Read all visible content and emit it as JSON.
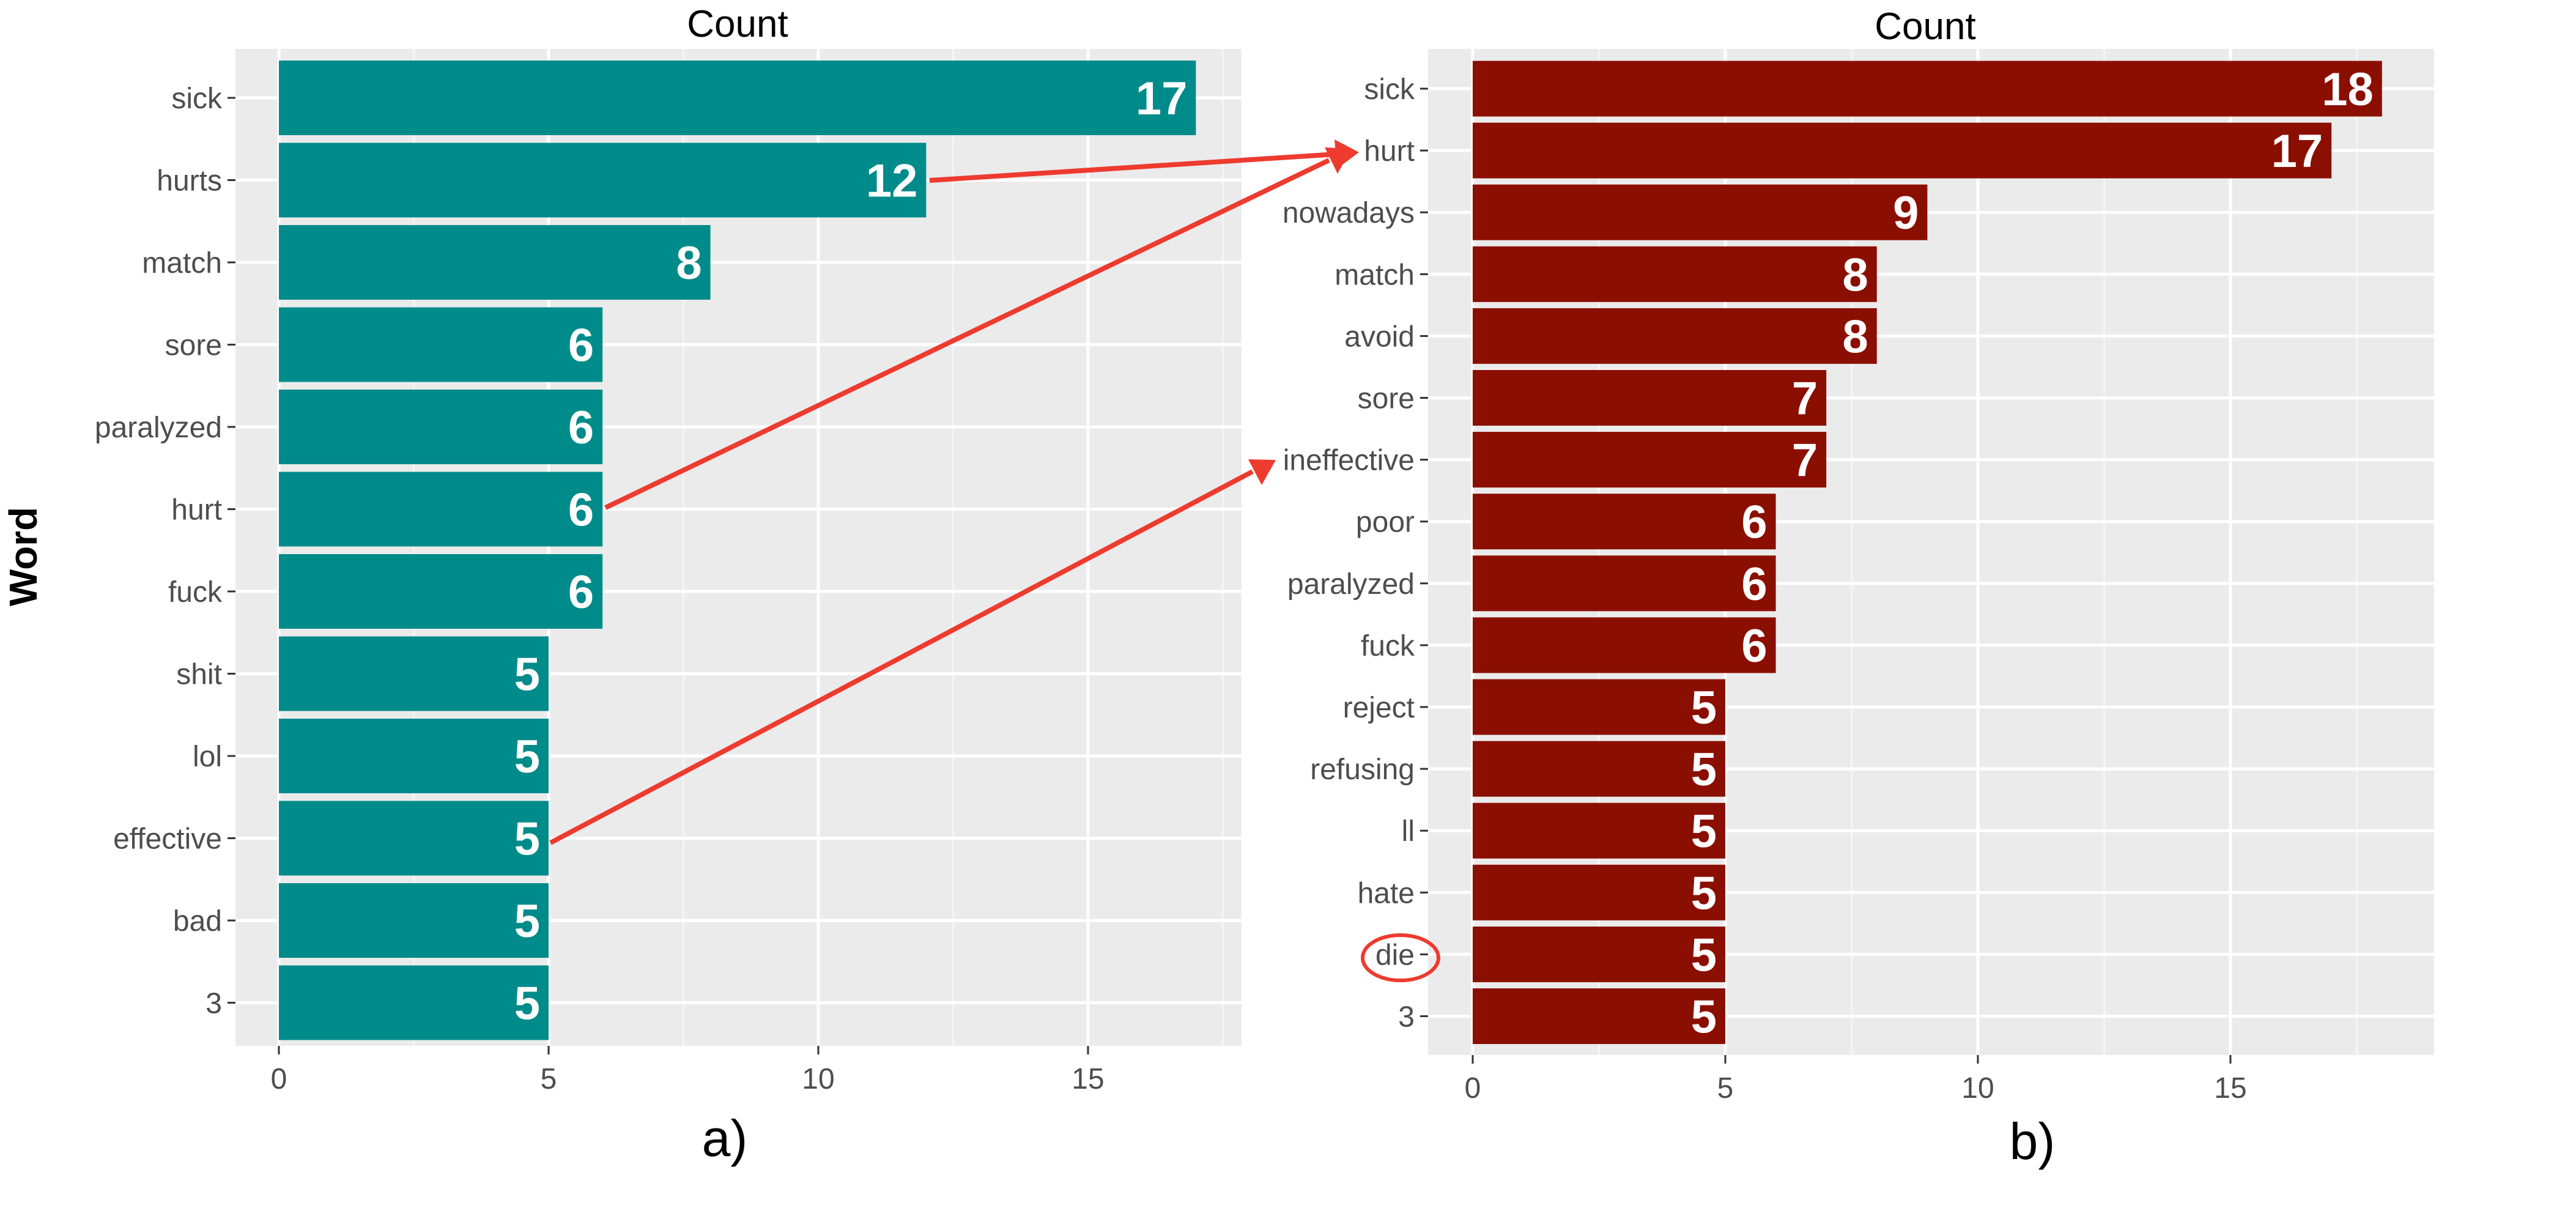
{
  "figure": {
    "y_axis_title": "Word",
    "colors": {
      "panel_a_bar": "#008b8b",
      "panel_b_bar": "#8b0f00",
      "annotation": "#ee3b2f"
    },
    "annotations": [
      {
        "type": "arrow",
        "from": "a: hurts",
        "to": "b: hurt"
      },
      {
        "type": "arrow",
        "from": "a: hurt",
        "to": "b: hurt"
      },
      {
        "type": "arrow",
        "from": "a: effective",
        "to": "b: ineffective"
      },
      {
        "type": "circle",
        "target": "b: die"
      }
    ]
  },
  "chart_data": [
    {
      "type": "bar",
      "orientation": "horizontal",
      "panel_label": "a)",
      "title": "Count",
      "ylabel": "Word",
      "xlabel": "",
      "categories": [
        "sick",
        "hurts",
        "match",
        "sore",
        "paralyzed",
        "hurt",
        "fuck",
        "shit",
        "lol",
        "effective",
        "bad",
        "3"
      ],
      "values": [
        17,
        12,
        8,
        6,
        6,
        6,
        6,
        5,
        5,
        5,
        5,
        5
      ],
      "xlim": [
        0,
        18
      ],
      "xticks": [
        0,
        5,
        10,
        15
      ],
      "grid": true
    },
    {
      "type": "bar",
      "orientation": "horizontal",
      "panel_label": "b)",
      "title": "Count",
      "ylabel": "Word",
      "xlabel": "",
      "categories": [
        "sick",
        "hurt",
        "nowadays",
        "match",
        "avoid",
        "sore",
        "ineffective",
        "poor",
        "paralyzed",
        "fuck",
        "reject",
        "refusing",
        "ll",
        "hate",
        "die",
        "3"
      ],
      "values": [
        18,
        17,
        9,
        8,
        8,
        7,
        7,
        6,
        6,
        6,
        5,
        5,
        5,
        5,
        5,
        5
      ],
      "xlim": [
        0,
        19
      ],
      "xticks": [
        0,
        5,
        10,
        15
      ],
      "grid": true
    }
  ]
}
